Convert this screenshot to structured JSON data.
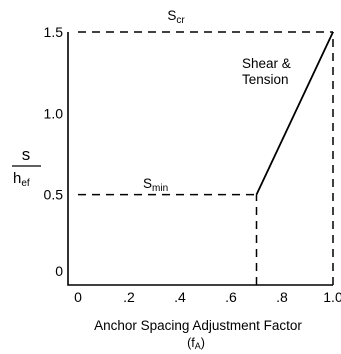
{
  "chart_data": {
    "type": "line",
    "xlabel": "Anchor Spacing Adjustment Factor",
    "xlabel_symbol": "(fA)",
    "ylabel_num": "s",
    "ylabel_den": "hef",
    "xlim": [
      0,
      1.0
    ],
    "ylim": [
      0,
      1.5
    ],
    "x_ticks": [
      {
        "value": 0,
        "label": "0"
      },
      {
        "value": 0.2,
        "label": ".2"
      },
      {
        "value": 0.4,
        "label": ".4"
      },
      {
        "value": 0.6,
        "label": ".6"
      },
      {
        "value": 0.8,
        "label": ".8"
      },
      {
        "value": 1.0,
        "label": "1.0"
      }
    ],
    "y_ticks": [
      {
        "value": 0,
        "label": "0"
      },
      {
        "value": 0.5,
        "label": "0.5"
      },
      {
        "value": 1.0,
        "label": "1.0"
      },
      {
        "value": 1.5,
        "label": "1.5"
      }
    ],
    "series": [
      {
        "name": "Shear & Tension",
        "x": [
          0.7,
          1.0
        ],
        "y": [
          0.5,
          1.5
        ]
      }
    ],
    "reference_lines": [
      {
        "kind": "horizontal",
        "name": "Smin",
        "y": 0.5,
        "x_from": 0,
        "x_to": 0.7
      },
      {
        "kind": "horizontal",
        "name": "Scr",
        "y": 1.5,
        "x_from": 0,
        "x_to": 1.0
      },
      {
        "kind": "vertical",
        "x": 0.7,
        "y_from": 0,
        "y_to": 0.5
      },
      {
        "kind": "vertical",
        "x": 1.0,
        "y_from": 0,
        "y_to": 1.5
      }
    ],
    "annotations": {
      "scr": "Scr",
      "smin": "Smin",
      "curve_line1": "Shear &",
      "curve_line2": "Tension"
    }
  }
}
